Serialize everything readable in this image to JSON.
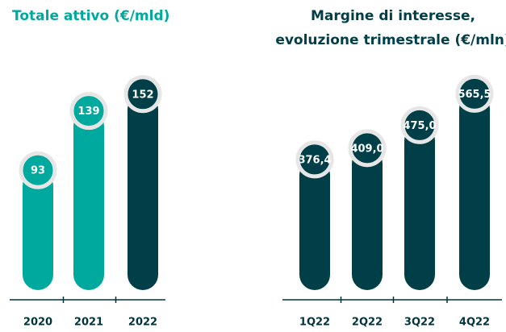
{
  "chart_data": [
    {
      "type": "bar",
      "title": "Totale attivo (€/mld)",
      "title_color": "#00a99d",
      "categories": [
        "2020",
        "2021",
        "2022"
      ],
      "values": [
        93,
        139,
        152
      ],
      "colors": [
        "#00a99d",
        "#00a99d",
        "#003f48"
      ],
      "ylim": [
        0,
        175
      ]
    },
    {
      "type": "bar",
      "title": [
        "Margine di interesse,",
        "evoluzione trimestrale (€/mln)"
      ],
      "title_color": "#003f48",
      "categories": [
        "1Q22",
        "2Q22",
        "3Q22",
        "4Q22"
      ],
      "values": [
        376.4,
        409.0,
        475.0,
        565.5
      ],
      "value_labels": [
        "376,4",
        "409,0",
        "475,0",
        "565,5"
      ],
      "colors": [
        "#003f48",
        "#003f48",
        "#003f48",
        "#003f48"
      ],
      "ylim": [
        0,
        650
      ]
    }
  ]
}
